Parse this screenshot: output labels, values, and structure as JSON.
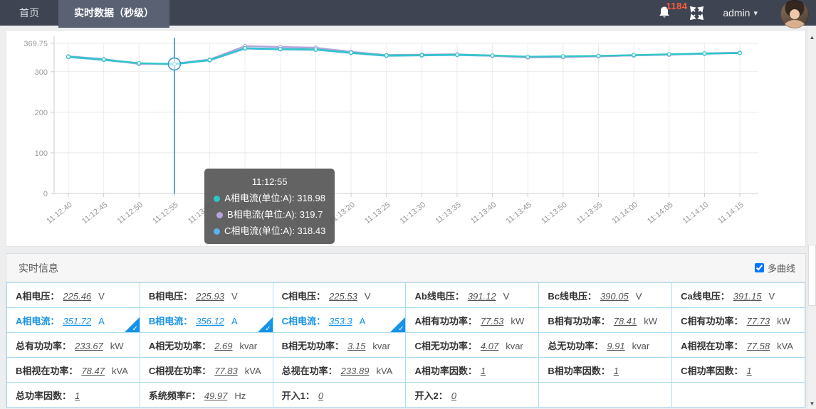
{
  "nav": {
    "home": "首页",
    "active_tab": "实时数据（秒级）",
    "notification_count": "1184",
    "username": "admin"
  },
  "icons": {
    "caret_down": "▾",
    "scroll_up": "▲",
    "scroll_down": "▼",
    "check": "✓"
  },
  "chart_data": {
    "type": "line",
    "x": [
      "11:12:40",
      "11:12:45",
      "11:12:50",
      "11:12:55",
      "11:13:00",
      "11:13:05",
      "11:13:10",
      "11:13:15",
      "11:13:20",
      "11:13:25",
      "11:13:30",
      "11:13:35",
      "11:13:40",
      "11:13:45",
      "11:13:50",
      "11:13:55",
      "11:14:00",
      "11:14:05",
      "11:14:10",
      "11:14:15"
    ],
    "series": [
      {
        "name": "A相电流(单位:A)",
        "color": "#2ec7c9",
        "values": [
          337,
          330,
          321,
          318.98,
          329,
          358,
          356,
          355,
          347,
          340,
          341,
          342,
          340,
          337,
          338,
          339,
          341,
          343,
          345,
          346
        ]
      },
      {
        "name": "B相电流(单位:A)",
        "color": "#b6a2de",
        "values": [
          338,
          331,
          319,
          319.7,
          330,
          363,
          361,
          359,
          349,
          341,
          342,
          343,
          339,
          335,
          336,
          338,
          340,
          342,
          345,
          347
        ]
      },
      {
        "name": "C相电流(单位:A)",
        "color": "#5ab1ef",
        "values": [
          336,
          329,
          320,
          318.43,
          328,
          357,
          355,
          354,
          346,
          339,
          340,
          341,
          339,
          336,
          337,
          338,
          340,
          342,
          344,
          346
        ]
      }
    ],
    "ylim": [
      0,
      369.75
    ],
    "y_ticks": [
      0,
      100,
      200,
      300,
      369.75
    ],
    "grid": true,
    "legend_position": "none",
    "highlight_index": 3,
    "highlight_line_color": "#2079b4"
  },
  "tooltip": {
    "title": "11:12:55",
    "items": [
      {
        "text": "A相电流(单位:A): 318.98",
        "color": "#2ec7c9"
      },
      {
        "text": "B相电流(单位:A): 319.7",
        "color": "#b6a2de"
      },
      {
        "text": "C相电流(单位:A): 318.43",
        "color": "#5ab1ef"
      }
    ]
  },
  "info_panel": {
    "title": "实时信息",
    "multi_curve_label": "多曲线",
    "multi_curve_checked": true
  },
  "table": {
    "rows": [
      [
        {
          "label": "A相电压：",
          "value": "225.46",
          "unit": "V"
        },
        {
          "label": "B相电压：",
          "value": "225.93",
          "unit": "V"
        },
        {
          "label": "C相电压：",
          "value": "225.53",
          "unit": "V"
        },
        {
          "label": "Ab线电压：",
          "value": "391.12",
          "unit": "V"
        },
        {
          "label": "Bc线电压：",
          "value": "390.05",
          "unit": "V"
        },
        {
          "label": "Ca线电压：",
          "value": "391.15",
          "unit": "V"
        }
      ],
      [
        {
          "label": "A相电流：",
          "value": "351.72",
          "unit": "A",
          "selected": true
        },
        {
          "label": "B相电流：",
          "value": "356.12",
          "unit": "A",
          "selected": true
        },
        {
          "label": "C相电流：",
          "value": "353.3",
          "unit": "A",
          "selected": true
        },
        {
          "label": "A相有功功率：",
          "value": "77.53",
          "unit": "kW"
        },
        {
          "label": "B相有功功率：",
          "value": "78.41",
          "unit": "kW"
        },
        {
          "label": "C相有功功率：",
          "value": "77.73",
          "unit": "kW"
        }
      ],
      [
        {
          "label": "总有功功率：",
          "value": "233.67",
          "unit": "kW"
        },
        {
          "label": "A相无功功率：",
          "value": "2.69",
          "unit": "kvar"
        },
        {
          "label": "B相无功功率：",
          "value": "3.15",
          "unit": "kvar"
        },
        {
          "label": "C相无功功率：",
          "value": "4.07",
          "unit": "kvar"
        },
        {
          "label": "总无功功率：",
          "value": "9.91",
          "unit": "kvar"
        },
        {
          "label": "A相视在功率：",
          "value": "77.58",
          "unit": "kVA"
        }
      ],
      [
        {
          "label": "B相视在功率：",
          "value": "78.47",
          "unit": "kVA"
        },
        {
          "label": "C相视在功率：",
          "value": "77.83",
          "unit": "kVA"
        },
        {
          "label": "总视在功率：",
          "value": "233.89",
          "unit": "kVA"
        },
        {
          "label": "A相功率因数：",
          "value": "1",
          "unit": ""
        },
        {
          "label": "B相功率因数：",
          "value": "1",
          "unit": ""
        },
        {
          "label": "C相功率因数：",
          "value": "1",
          "unit": ""
        }
      ],
      [
        {
          "label": "总功率因数：",
          "value": "1",
          "unit": ""
        },
        {
          "label": "系统频率F：",
          "value": "49.97",
          "unit": "Hz"
        },
        {
          "label": "开入1：",
          "value": "0",
          "unit": ""
        },
        {
          "label": "开入2：",
          "value": "0",
          "unit": ""
        },
        null,
        null
      ]
    ]
  }
}
